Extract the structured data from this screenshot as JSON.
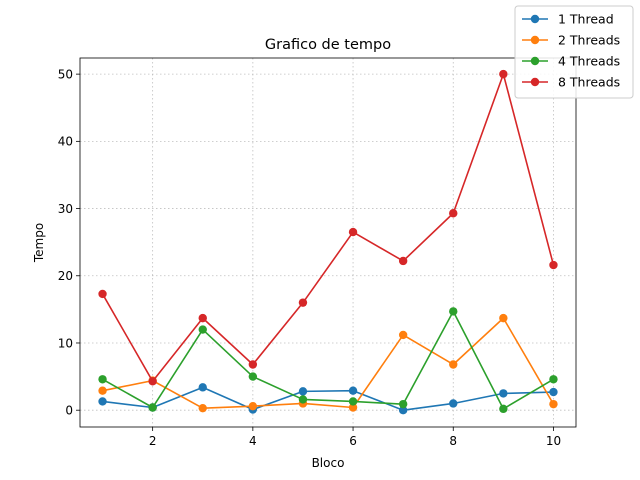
{
  "chart_data": {
    "type": "line",
    "title": "Grafico de tempo",
    "xlabel": "Bloco",
    "ylabel": "Tempo",
    "x": [
      1,
      2,
      3,
      4,
      5,
      6,
      7,
      8,
      9,
      10
    ],
    "xlim": [
      0.55,
      10.45
    ],
    "ylim": [
      -2.5,
      52.4
    ],
    "xticks": [
      2,
      4,
      6,
      8,
      10
    ],
    "yticks": [
      0,
      10,
      20,
      30,
      40,
      50
    ],
    "grid": true,
    "legend_position": "top-right",
    "series": [
      {
        "name": "1 Thread",
        "color": "#1f77b4",
        "values": [
          1.3,
          0.4,
          3.4,
          0.1,
          2.8,
          2.9,
          0.0,
          1.0,
          2.5,
          2.7
        ]
      },
      {
        "name": "2 Threads",
        "color": "#ff7f0e",
        "values": [
          2.9,
          4.4,
          0.3,
          0.6,
          1.0,
          0.4,
          11.2,
          6.8,
          13.7,
          0.9
        ]
      },
      {
        "name": "4 Threads",
        "color": "#2ca02c",
        "values": [
          4.6,
          0.4,
          12.0,
          5.0,
          1.6,
          1.3,
          0.9,
          14.7,
          0.2,
          4.6
        ]
      },
      {
        "name": "8 Threads",
        "color": "#d62728",
        "values": [
          17.3,
          4.3,
          13.7,
          6.8,
          16.0,
          26.5,
          22.2,
          29.3,
          50.0,
          21.6
        ]
      }
    ]
  }
}
